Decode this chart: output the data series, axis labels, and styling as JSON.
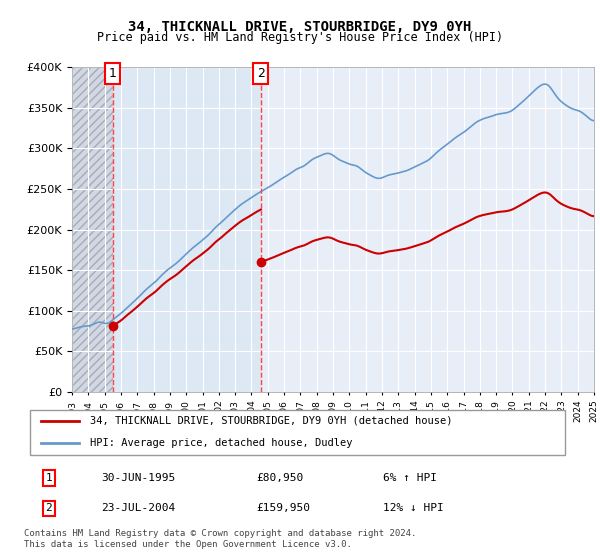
{
  "title": "34, THICKNALL DRIVE, STOURBRIDGE, DY9 0YH",
  "subtitle": "Price paid vs. HM Land Registry's House Price Index (HPI)",
  "sale1_date": 1995.5,
  "sale1_price": 80950,
  "sale1_label": "1",
  "sale2_date": 2004.56,
  "sale2_price": 159950,
  "sale2_label": "2",
  "legend_line1": "34, THICKNALL DRIVE, STOURBRIDGE, DY9 0YH (detached house)",
  "legend_line2": "HPI: Average price, detached house, Dudley",
  "table_row1": [
    "1",
    "30-JUN-1995",
    "£80,950",
    "6% ↑ HPI"
  ],
  "table_row2": [
    "2",
    "23-JUL-2004",
    "£159,950",
    "12% ↓ HPI"
  ],
  "footer": "Contains HM Land Registry data © Crown copyright and database right 2024.\nThis data is licensed under the Open Government Licence v3.0.",
  "xmin": 1993,
  "xmax": 2025,
  "ymin": 0,
  "ymax": 400000,
  "hatch_color": "#cccccc",
  "background_color": "#ffffff",
  "plot_bg_color": "#e8eef8",
  "hatch_bg_color": "#dde4ee",
  "grid_color": "#ffffff",
  "red_line_color": "#cc0000",
  "blue_line_color": "#6699cc",
  "dashed_line_color": "#ff4444"
}
